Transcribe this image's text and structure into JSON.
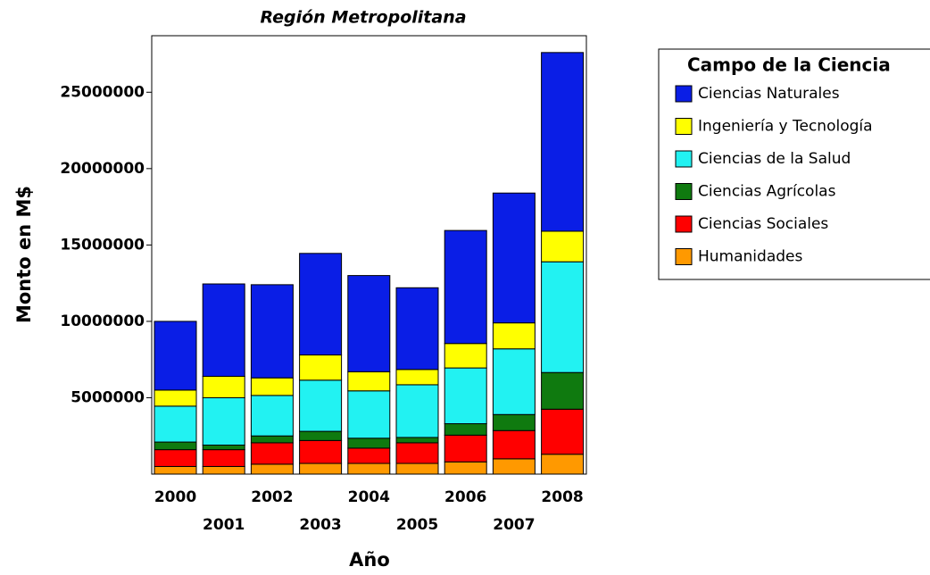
{
  "chart_data": {
    "type": "stacked_bar",
    "title": "Región Metropolitana",
    "x_label": "Año",
    "y_label": "Monto en M$",
    "legend_title": "Campo de la Ciencia",
    "categories": [
      "2000",
      "2001",
      "2002",
      "2003",
      "2004",
      "2005",
      "2006",
      "2007",
      "2008"
    ],
    "series": [
      {
        "name": "Humanidades",
        "color": "#ff9900",
        "values": [
          500000,
          500000,
          650000,
          700000,
          700000,
          700000,
          800000,
          1000000,
          1300000
        ]
      },
      {
        "name": "Ciencias Sociales",
        "color": "#ff0000",
        "values": [
          1100000,
          1100000,
          1400000,
          1500000,
          1000000,
          1350000,
          1750000,
          1850000,
          2950000
        ]
      },
      {
        "name": "Ciencias Agrícolas",
        "color": "#0f7a0f",
        "values": [
          500000,
          300000,
          450000,
          600000,
          650000,
          350000,
          750000,
          1050000,
          2400000
        ]
      },
      {
        "name": "Ciencias de la Salud",
        "color": "#22f2f2",
        "values": [
          2350000,
          3100000,
          2650000,
          3350000,
          3100000,
          3450000,
          3650000,
          4300000,
          7250000
        ]
      },
      {
        "name": "Ingeniería y Tecnología",
        "color": "#ffff00",
        "values": [
          1050000,
          1400000,
          1150000,
          1650000,
          1250000,
          1000000,
          1600000,
          1700000,
          2000000
        ]
      },
      {
        "name": "Ciencias Naturales",
        "color": "#0a1ee6",
        "values": [
          4500000,
          6050000,
          6100000,
          6650000,
          6300000,
          5350000,
          7400000,
          8500000,
          11700000
        ]
      }
    ],
    "ylim": [
      0,
      28700000
    ],
    "yticks": [
      5000000,
      10000000,
      15000000,
      20000000,
      25000000
    ]
  }
}
